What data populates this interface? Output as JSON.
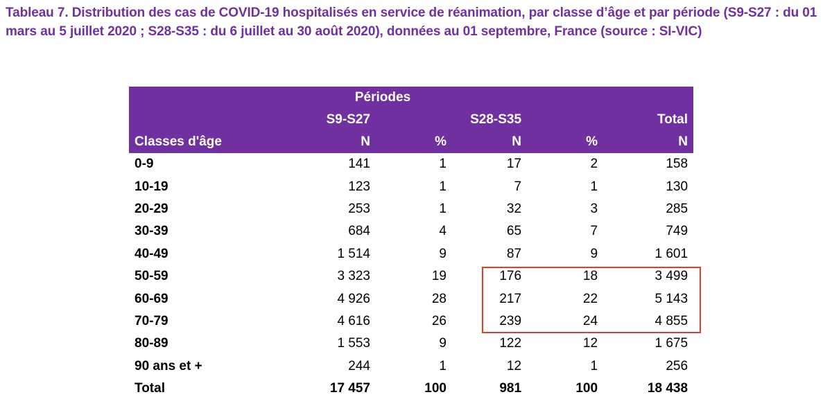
{
  "title": "Tableau 7. Distribution des cas de COVID-19 hospitalisés en service de réanimation, par classe d’âge et par période (S9-S27 : du 01 mars au 5 juillet 2020 ; S28-S35 : du 6 juillet au 30 août 2020), données au 01 septembre, France (source : SI-VIC)",
  "table": {
    "group_header": "Périodes",
    "period_1": "S9-S27",
    "period_2": "S28-S35",
    "total_header": "Total",
    "age_header": "Classes d'âge",
    "col_n": "N",
    "col_pct": "%",
    "rows": [
      {
        "age": "0-9",
        "n1": "141",
        "p1": "1",
        "n2": "17",
        "p2": "2",
        "total": "158"
      },
      {
        "age": "10-19",
        "n1": "123",
        "p1": "1",
        "n2": "7",
        "p2": "1",
        "total": "130"
      },
      {
        "age": "20-29",
        "n1": "253",
        "p1": "1",
        "n2": "32",
        "p2": "3",
        "total": "285"
      },
      {
        "age": "30-39",
        "n1": "684",
        "p1": "4",
        "n2": "65",
        "p2": "7",
        "total": "749"
      },
      {
        "age": "40-49",
        "n1": "1 514",
        "p1": "9",
        "n2": "87",
        "p2": "9",
        "total": "1 601"
      },
      {
        "age": "50-59",
        "n1": "3 323",
        "p1": "19",
        "n2": "176",
        "p2": "18",
        "total": "3 499"
      },
      {
        "age": "60-69",
        "n1": "4 926",
        "p1": "28",
        "n2": "217",
        "p2": "22",
        "total": "5 143"
      },
      {
        "age": "70-79",
        "n1": "4 616",
        "p1": "26",
        "n2": "239",
        "p2": "24",
        "total": "4 855"
      },
      {
        "age": "80-89",
        "n1": "1 553",
        "p1": "9",
        "n2": "122",
        "p2": "12",
        "total": "1 675"
      },
      {
        "age": "90 ans et +",
        "n1": "244",
        "p1": "1",
        "n2": "12",
        "p2": "1",
        "total": "256"
      }
    ],
    "total_row": {
      "age": "Total",
      "n1": "17 457",
      "p1": "100",
      "n2": "981",
      "p2": "100",
      "total": "18 438"
    }
  },
  "colors": {
    "title": "#7030a0",
    "header_bg": "#7030a0",
    "header_text": "#ffffff",
    "highlight_border": "#e0402a"
  }
}
